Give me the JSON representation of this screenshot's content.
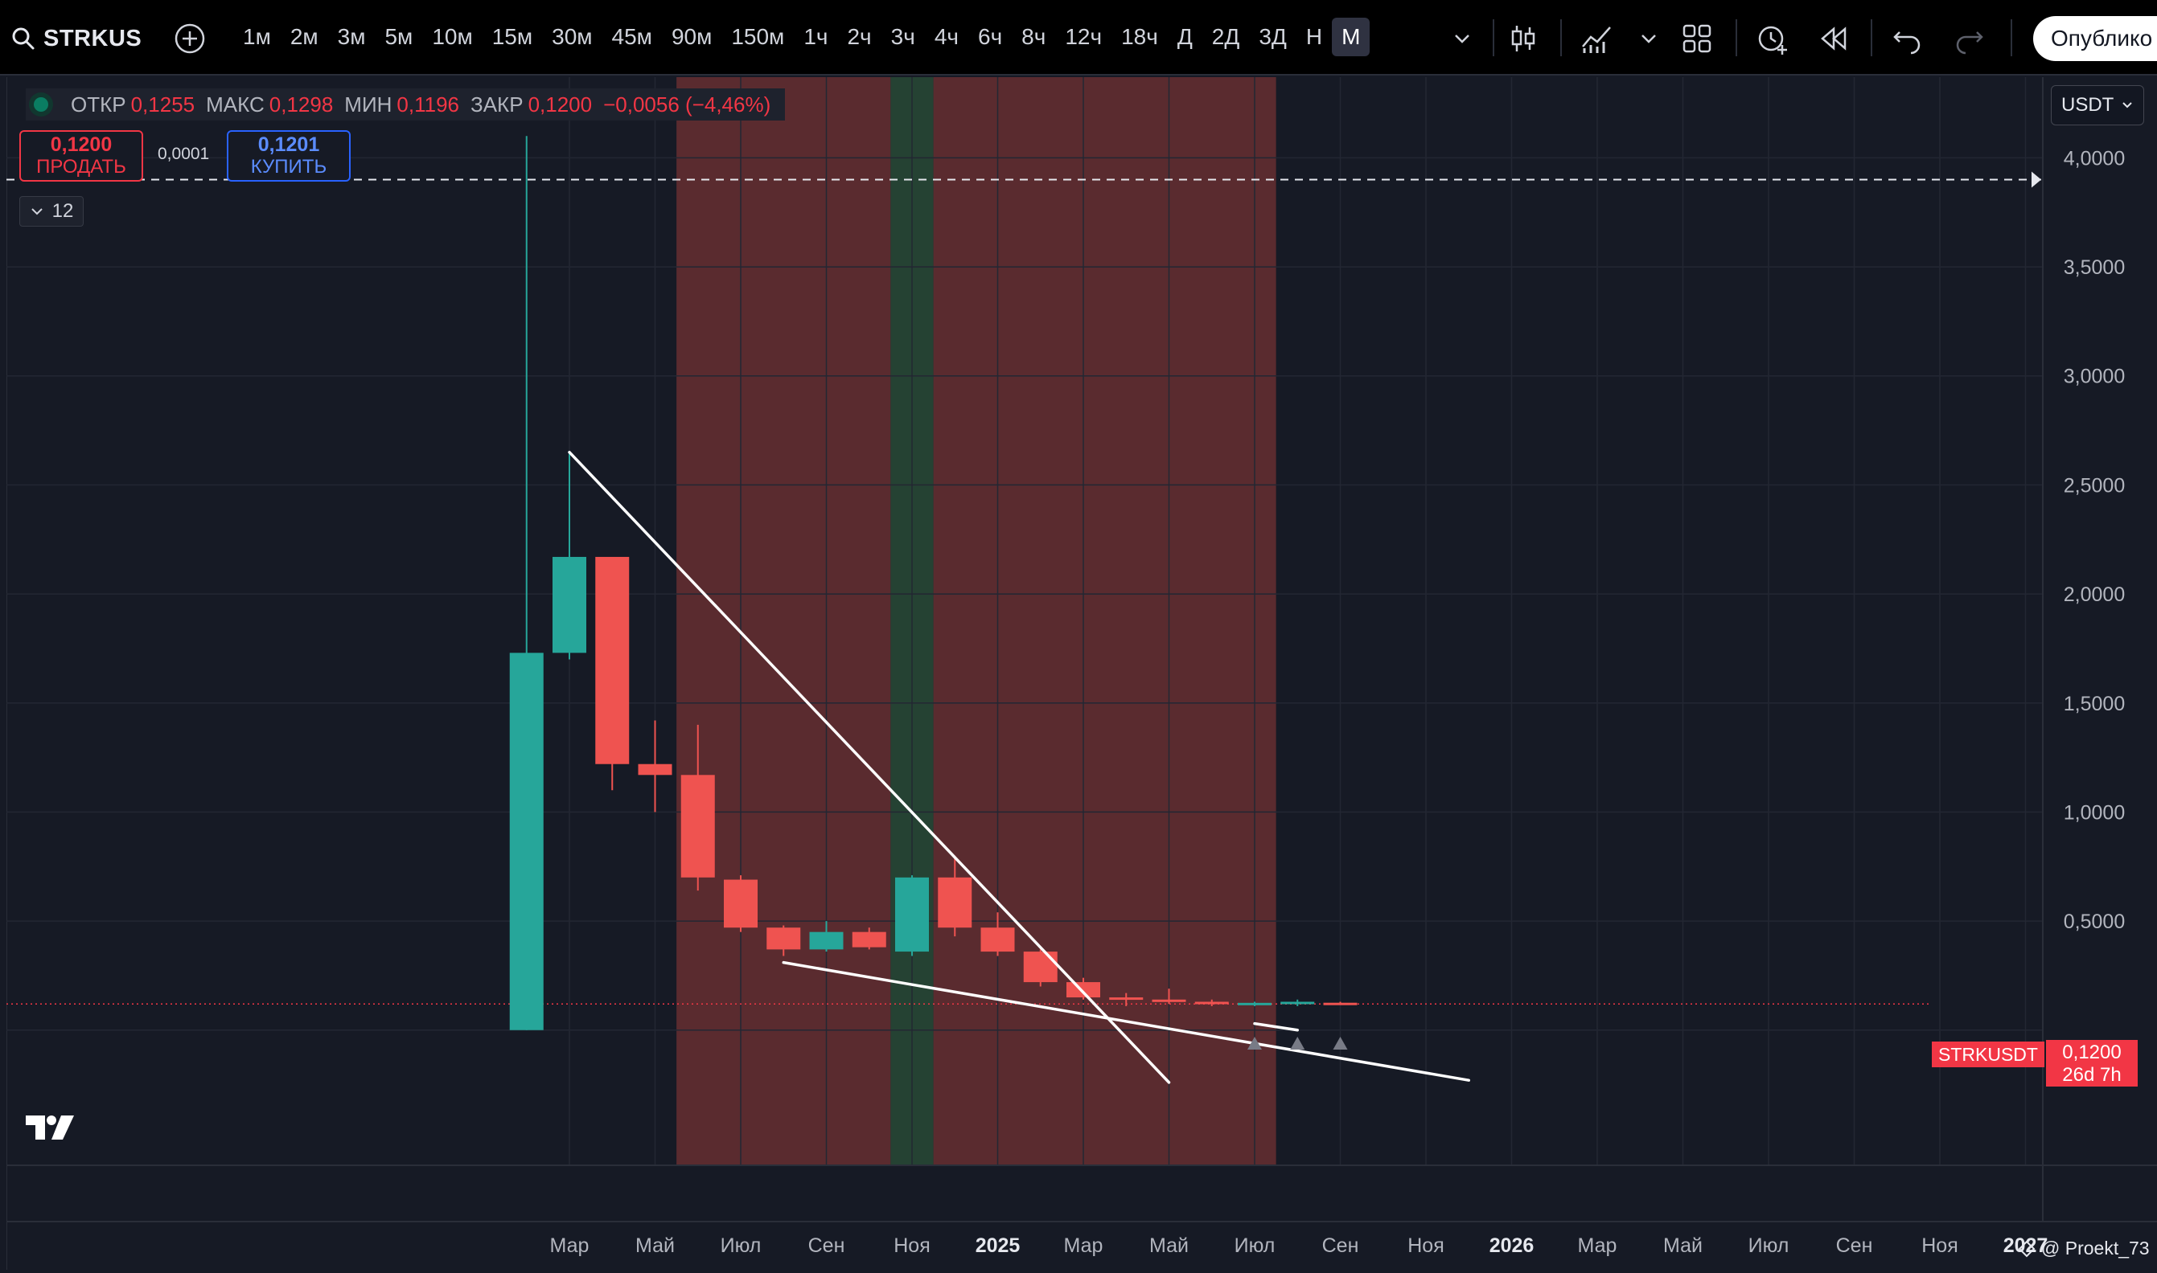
{
  "toolbar": {
    "symbol": "STRKUS",
    "intervals": [
      "1м",
      "2м",
      "3м",
      "5м",
      "10м",
      "15м",
      "30м",
      "45м",
      "90м",
      "150м",
      "1ч",
      "2ч",
      "3ч",
      "4ч",
      "6ч",
      "8ч",
      "12ч",
      "18ч",
      "Д",
      "2Д",
      "3Д",
      "Н",
      "М"
    ],
    "active_interval": "М",
    "publish_label": "Опублико"
  },
  "legend": {
    "open_label": "ОТКР",
    "open_value": "0,1255",
    "high_label": "МАКС",
    "high_value": "0,1298",
    "low_label": "МИН",
    "low_value": "0,1196",
    "close_label": "ЗАКР",
    "close_value": "0,1200",
    "change": "−0,0056 (−4,46%)"
  },
  "trade": {
    "sell_price": "0,1200",
    "sell_label": "ПРОДАТЬ",
    "spread": "0,0001",
    "buy_price": "0,1201",
    "buy_label": "КУПИТЬ"
  },
  "indicators_toggle": {
    "count": "12"
  },
  "currency": "USDT",
  "last_price": {
    "symbol": "STRKUSDT",
    "value": "0,1200",
    "countdown": "26d 7h"
  },
  "watermark": "@ Proekt_73",
  "colors": {
    "up": "#26a69a",
    "down": "#ef5350",
    "red_zone": "#5a2b2f",
    "green_zone": "#254233",
    "background": "#161a25"
  },
  "chart_data": {
    "type": "candlestick",
    "y_axis": {
      "ticks": [
        0.5,
        1.0,
        1.5,
        2.0,
        2.5,
        3.0,
        3.5,
        4.0
      ],
      "tick_labels": [
        "0,5000",
        "1,0000",
        "1,5000",
        "2,0000",
        "2,5000",
        "3,0000",
        "3,5000",
        "4,0000"
      ],
      "range": [
        -0.62,
        4.37
      ]
    },
    "x_axis": {
      "labels": [
        "Мар",
        "Май",
        "Июл",
        "Сен",
        "Ноя",
        "2025",
        "Мар",
        "Май",
        "Июл",
        "Сен",
        "Ноя",
        "2026",
        "Мар",
        "Май",
        "Июл",
        "Сен",
        "Ноя",
        "2027"
      ],
      "bold": [
        "2025",
        "2026",
        "2027"
      ],
      "first_label_month": "2024-03",
      "month_step": 2
    },
    "candles": [
      {
        "month": "2024-02",
        "o": 0.0,
        "h": 4.1,
        "l": 0.0,
        "c": 1.73
      },
      {
        "month": "2024-03",
        "o": 1.73,
        "h": 2.65,
        "l": 1.7,
        "c": 2.17
      },
      {
        "month": "2024-04",
        "o": 2.17,
        "h": 2.17,
        "l": 1.1,
        "c": 1.22
      },
      {
        "month": "2024-05",
        "o": 1.22,
        "h": 1.42,
        "l": 1.0,
        "c": 1.17
      },
      {
        "month": "2024-06",
        "o": 1.17,
        "h": 1.4,
        "l": 0.64,
        "c": 0.7
      },
      {
        "month": "2024-07",
        "o": 0.69,
        "h": 0.71,
        "l": 0.45,
        "c": 0.47
      },
      {
        "month": "2024-08",
        "o": 0.47,
        "h": 0.48,
        "l": 0.34,
        "c": 0.37
      },
      {
        "month": "2024-09",
        "o": 0.37,
        "h": 0.5,
        "l": 0.36,
        "c": 0.45
      },
      {
        "month": "2024-10",
        "o": 0.45,
        "h": 0.47,
        "l": 0.37,
        "c": 0.38
      },
      {
        "month": "2024-11",
        "o": 0.36,
        "h": 0.71,
        "l": 0.34,
        "c": 0.7
      },
      {
        "month": "2024-12",
        "o": 0.7,
        "h": 0.8,
        "l": 0.43,
        "c": 0.47
      },
      {
        "month": "2025-01",
        "o": 0.47,
        "h": 0.54,
        "l": 0.34,
        "c": 0.36
      },
      {
        "month": "2025-02",
        "o": 0.36,
        "h": 0.37,
        "l": 0.2,
        "c": 0.22
      },
      {
        "month": "2025-03",
        "o": 0.22,
        "h": 0.24,
        "l": 0.14,
        "c": 0.15
      },
      {
        "month": "2025-04",
        "o": 0.15,
        "h": 0.17,
        "l": 0.11,
        "c": 0.14
      },
      {
        "month": "2025-05",
        "o": 0.14,
        "h": 0.19,
        "l": 0.12,
        "c": 0.13
      },
      {
        "month": "2025-06",
        "o": 0.13,
        "h": 0.14,
        "l": 0.11,
        "c": 0.12
      },
      {
        "month": "2025-07",
        "o": 0.12,
        "h": 0.13,
        "l": 0.11,
        "c": 0.125
      },
      {
        "month": "2025-08",
        "o": 0.12,
        "h": 0.14,
        "l": 0.11,
        "c": 0.13
      },
      {
        "month": "2025-09",
        "o": 0.1255,
        "h": 0.1298,
        "l": 0.1196,
        "c": 0.12
      }
    ],
    "shaded_zones": [
      {
        "from": "2024-06",
        "to": "2024-11",
        "color": "red"
      },
      {
        "from": "2024-11",
        "to": "2024-12",
        "color": "green"
      },
      {
        "from": "2024-12",
        "to": "2025-08",
        "color": "red"
      }
    ],
    "trendlines": [
      {
        "from": [
          "2024-03",
          2.65
        ],
        "to": [
          "2025-05",
          -0.24
        ]
      },
      {
        "from": [
          "2024-08",
          0.31
        ],
        "to": [
          "2025-12",
          -0.23
        ]
      },
      {
        "from": [
          "2025-07",
          0.03
        ],
        "to": [
          "2025-08",
          0.0
        ]
      }
    ],
    "horizontal_lines": [
      {
        "value": 3.9,
        "style": "dashed",
        "color": "white"
      },
      {
        "value": 0.12,
        "style": "dotted",
        "color": "red"
      }
    ],
    "markers": [
      {
        "month": "2025-07",
        "shape": "triangle-up"
      },
      {
        "month": "2025-08",
        "shape": "triangle-up"
      },
      {
        "month": "2025-09",
        "shape": "triangle-up"
      }
    ]
  }
}
